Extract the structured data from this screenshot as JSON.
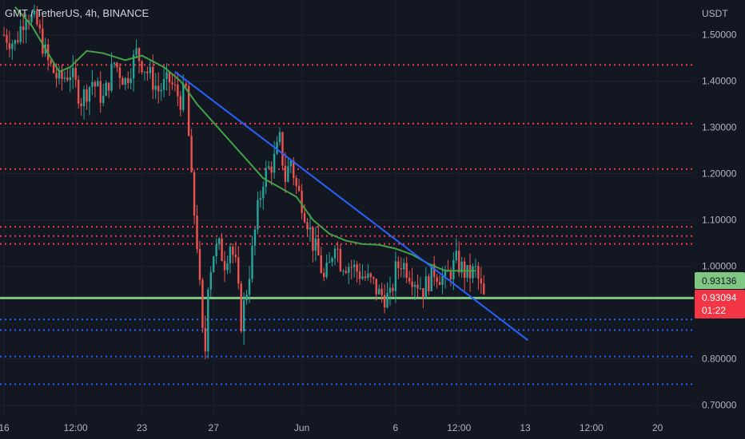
{
  "header": {
    "symbol_title": "GMT / TetherUS, 4h, BINANCE"
  },
  "colors": {
    "background": "#131722",
    "grid": "#1e222d",
    "axis_text": "#b2b5be",
    "candle_up": "#26a69a",
    "candle_down": "#ef5350",
    "ma_line": "#43a047",
    "trend_line": "#2962ff",
    "resistance_line": "#f23645",
    "support_line": "#2962ff",
    "highlight_line": "#81c784",
    "price_tag_green": "#81c784",
    "price_tag_red": "#f23645"
  },
  "chart_data": {
    "type": "candlestick",
    "ylabel": "USDT",
    "ylim": [
      0.675,
      1.575
    ],
    "y_ticks": [
      "1.50000",
      "1.40000",
      "1.30000",
      "1.20000",
      "1.10000",
      "1.00000",
      "0.80000",
      "0.70000"
    ],
    "x_ticks": [
      "16",
      "12:00",
      "23",
      "27",
      "Jun",
      "6",
      "12:00",
      "13",
      "12:00",
      "20"
    ],
    "x_tick_index": [
      0,
      26,
      50,
      76,
      108,
      142,
      165,
      189,
      213,
      237
    ],
    "candle_count": 190,
    "candle_data_length": 174,
    "close_path": [
      [
        0,
        1.5
      ],
      [
        4,
        1.48
      ],
      [
        8,
        1.55
      ],
      [
        12,
        1.52
      ],
      [
        16,
        1.44
      ],
      [
        20,
        1.4
      ],
      [
        24,
        1.42
      ],
      [
        28,
        1.36
      ],
      [
        32,
        1.4
      ],
      [
        36,
        1.36
      ],
      [
        40,
        1.44
      ],
      [
        44,
        1.4
      ],
      [
        48,
        1.46
      ],
      [
        52,
        1.42
      ],
      [
        56,
        1.38
      ],
      [
        60,
        1.4
      ],
      [
        64,
        1.36
      ],
      [
        66,
        1.38
      ],
      [
        68,
        1.18
      ],
      [
        70,
        1.05
      ],
      [
        72,
        0.85
      ],
      [
        73,
        0.82
      ],
      [
        74,
        0.97
      ],
      [
        76,
        1.03
      ],
      [
        78,
        1.04
      ],
      [
        80,
        1.01
      ],
      [
        82,
        1.05
      ],
      [
        84,
        1.0
      ],
      [
        86,
        0.88
      ],
      [
        88,
        0.95
      ],
      [
        90,
        1.03
      ],
      [
        92,
        1.12
      ],
      [
        94,
        1.19
      ],
      [
        96,
        1.21
      ],
      [
        98,
        1.23
      ],
      [
        100,
        1.27
      ],
      [
        102,
        1.19
      ],
      [
        104,
        1.23
      ],
      [
        106,
        1.17
      ],
      [
        108,
        1.14
      ],
      [
        110,
        1.1
      ],
      [
        112,
        1.05
      ],
      [
        114,
        1.02
      ],
      [
        116,
        0.97
      ],
      [
        118,
        1.0
      ],
      [
        120,
        1.06
      ],
      [
        122,
        1.01
      ],
      [
        126,
        1.0
      ],
      [
        130,
        0.98
      ],
      [
        134,
        0.96
      ],
      [
        136,
        0.94
      ],
      [
        140,
        0.93
      ],
      [
        142,
        0.99
      ],
      [
        144,
        1.01
      ],
      [
        148,
        0.98
      ],
      [
        152,
        0.95
      ],
      [
        156,
        0.99
      ],
      [
        160,
        0.97
      ],
      [
        164,
        1.01
      ],
      [
        168,
        0.98
      ],
      [
        171,
        0.99
      ],
      [
        174,
        0.93
      ]
    ],
    "ma_path": [
      [
        4,
        1.56
      ],
      [
        10,
        1.52
      ],
      [
        16,
        1.46
      ],
      [
        20,
        1.42
      ],
      [
        24,
        1.43
      ],
      [
        30,
        1.465
      ],
      [
        36,
        1.46
      ],
      [
        44,
        1.445
      ],
      [
        50,
        1.455
      ],
      [
        58,
        1.43
      ],
      [
        64,
        1.4
      ],
      [
        70,
        1.35
      ],
      [
        76,
        1.31
      ],
      [
        82,
        1.27
      ],
      [
        88,
        1.23
      ],
      [
        94,
        1.19
      ],
      [
        100,
        1.17
      ],
      [
        106,
        1.15
      ],
      [
        112,
        1.1
      ],
      [
        118,
        1.07
      ],
      [
        124,
        1.055
      ],
      [
        130,
        1.048
      ],
      [
        136,
        1.046
      ],
      [
        142,
        1.038
      ],
      [
        148,
        1.025
      ],
      [
        154,
        1.005
      ],
      [
        160,
        0.99
      ],
      [
        166,
        0.99
      ],
      [
        171,
        0.99
      ]
    ],
    "trend_line": {
      "start": [
        62,
        1.42
      ],
      "end": [
        190,
        0.84
      ]
    },
    "resistance_levels": [
      1.435,
      1.308,
      1.21,
      1.085,
      1.065,
      1.048
    ],
    "support_levels": [
      0.885,
      0.862,
      0.805,
      0.745
    ],
    "highlight_level": 0.9313,
    "price_tags": {
      "green_value": "0.93136",
      "red_value": "0.93094",
      "countdown": "01:22",
      "red_level": 0.9309
    }
  }
}
